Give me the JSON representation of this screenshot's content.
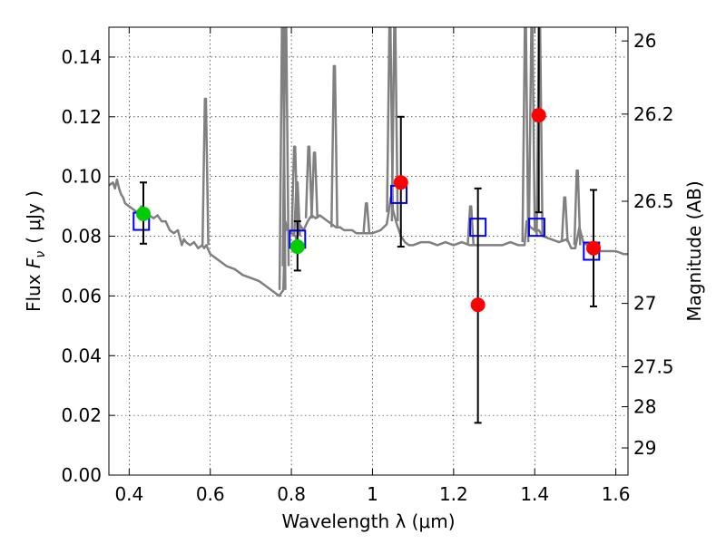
{
  "chart_data": {
    "type": "scatter",
    "title": "",
    "xlabel": "Wavelength  λ (μm)",
    "ylabel": "Flux  F_ν ( μJy )",
    "ylabel_parts": {
      "prefix": "Flux ",
      "symbol": "F",
      "subscript": "ν",
      "unit": "( μJy )"
    },
    "y2label": "Magnitude (AB)",
    "xlim": [
      0.35,
      1.63
    ],
    "ylim": [
      0.0,
      0.15
    ],
    "grid": true,
    "x_ticks": [
      "0.4",
      "0.6",
      "0.8",
      "1",
      "1.2",
      "1.4",
      "1.6"
    ],
    "x_tick_values": [
      0.4,
      0.6,
      0.8,
      1.0,
      1.2,
      1.4,
      1.6
    ],
    "y_ticks": [
      "0.00",
      "0.02",
      "0.04",
      "0.06",
      "0.08",
      "0.10",
      "0.12",
      "0.14"
    ],
    "y_tick_values": [
      0.0,
      0.02,
      0.04,
      0.06,
      0.08,
      0.1,
      0.12,
      0.14
    ],
    "y2_ticks": [
      {
        "label": "26",
        "flux": 0.1454
      },
      {
        "label": "26.2",
        "flux": 0.1209
      },
      {
        "label": "26.5",
        "flux": 0.0917
      },
      {
        "label": "27",
        "flux": 0.0575
      },
      {
        "label": "27.5",
        "flux": 0.0363
      },
      {
        "label": "28",
        "flux": 0.0229
      },
      {
        "label": "29",
        "flux": 0.0091
      }
    ],
    "colors": {
      "spectrum": "#808080",
      "model_box": "#0000ff",
      "green_points": "#00cc00",
      "red_points": "#ff0000",
      "errorbar": "#000000"
    },
    "series": [
      {
        "key": "spectrum",
        "kind": "line",
        "x": [
          0.35,
          0.36,
          0.365,
          0.37,
          0.375,
          0.38,
          0.385,
          0.39,
          0.4,
          0.41,
          0.42,
          0.43,
          0.44,
          0.45,
          0.46,
          0.47,
          0.48,
          0.49,
          0.5,
          0.51,
          0.52,
          0.53,
          0.535,
          0.54,
          0.55,
          0.56,
          0.57,
          0.58,
          0.585,
          0.59,
          0.6,
          0.62,
          0.64,
          0.66,
          0.68,
          0.7,
          0.72,
          0.74,
          0.76,
          0.77,
          0.775,
          0.78,
          0.785,
          0.79,
          0.8,
          0.81,
          0.812,
          0.815,
          0.82,
          0.83,
          0.84,
          0.85,
          0.86,
          0.87,
          0.88,
          0.89,
          0.9,
          0.91,
          0.92,
          0.93,
          0.94,
          0.95,
          0.96,
          0.97,
          0.98,
          0.99,
          1.0,
          1.02,
          1.035,
          1.04,
          1.045,
          1.05,
          1.06,
          1.07,
          1.08,
          1.09,
          1.1,
          1.12,
          1.14,
          1.16,
          1.18,
          1.2,
          1.22,
          1.24,
          1.26,
          1.28,
          1.3,
          1.32,
          1.34,
          1.36,
          1.375,
          1.38,
          1.385,
          1.39,
          1.4,
          1.41,
          1.42,
          1.44,
          1.46,
          1.48,
          1.49,
          1.5,
          1.51,
          1.52,
          1.54,
          1.56,
          1.58,
          1.6,
          1.62,
          1.63
        ],
        "y": [
          0.097,
          0.098,
          0.096,
          0.099,
          0.096,
          0.094,
          0.093,
          0.091,
          0.09,
          0.089,
          0.088,
          0.09,
          0.088,
          0.087,
          0.086,
          0.087,
          0.085,
          0.085,
          0.082,
          0.081,
          0.082,
          0.077,
          0.079,
          0.078,
          0.077,
          0.078,
          0.076,
          0.077,
          0.076,
          0.077,
          0.074,
          0.072,
          0.07,
          0.069,
          0.067,
          0.066,
          0.065,
          0.063,
          0.061,
          0.06,
          0.061,
          0.062,
          0.085,
          0.082,
          0.081,
          0.08,
          0.079,
          0.08,
          0.084,
          0.082,
          0.085,
          0.087,
          0.086,
          0.087,
          0.086,
          0.085,
          0.084,
          0.083,
          0.083,
          0.082,
          0.082,
          0.082,
          0.081,
          0.081,
          0.081,
          0.081,
          0.081,
          0.082,
          0.084,
          0.088,
          0.093,
          0.089,
          0.084,
          0.08,
          0.078,
          0.077,
          0.077,
          0.078,
          0.078,
          0.077,
          0.078,
          0.077,
          0.078,
          0.077,
          0.077,
          0.077,
          0.077,
          0.077,
          0.078,
          0.077,
          0.077,
          0.085,
          0.084,
          0.083,
          0.082,
          0.082,
          0.08,
          0.079,
          0.078,
          0.079,
          0.076,
          0.076,
          0.083,
          0.078,
          0.076,
          0.075,
          0.075,
          0.075,
          0.074,
          0.074
        ]
      },
      {
        "key": "emission_lines",
        "kind": "spikes",
        "points": [
          {
            "x": 0.588,
            "base": 0.077,
            "peak": 0.126
          },
          {
            "x": 0.778,
            "base": 0.062,
            "peak": 0.15
          },
          {
            "x": 0.786,
            "base": 0.07,
            "peak": 0.15
          },
          {
            "x": 0.808,
            "base": 0.081,
            "peak": 0.11
          },
          {
            "x": 0.814,
            "base": 0.08,
            "peak": 0.098
          },
          {
            "x": 0.843,
            "base": 0.086,
            "peak": 0.11
          },
          {
            "x": 0.857,
            "base": 0.086,
            "peak": 0.108
          },
          {
            "x": 0.906,
            "base": 0.083,
            "peak": 0.137
          },
          {
            "x": 0.985,
            "base": 0.081,
            "peak": 0.091
          },
          {
            "x": 1.043,
            "base": 0.088,
            "peak": 0.15
          },
          {
            "x": 1.055,
            "base": 0.085,
            "peak": 0.15
          },
          {
            "x": 1.242,
            "base": 0.077,
            "peak": 0.09
          },
          {
            "x": 1.377,
            "base": 0.078,
            "peak": 0.15
          },
          {
            "x": 1.393,
            "base": 0.082,
            "peak": 0.15
          },
          {
            "x": 1.412,
            "base": 0.08,
            "peak": 0.15
          },
          {
            "x": 1.474,
            "base": 0.078,
            "peak": 0.093
          },
          {
            "x": 1.505,
            "base": 0.077,
            "peak": 0.102
          }
        ]
      },
      {
        "key": "model_box",
        "kind": "square",
        "points": [
          {
            "x": 0.43,
            "y": 0.085
          },
          {
            "x": 0.815,
            "y": 0.079
          },
          {
            "x": 1.065,
            "y": 0.094
          },
          {
            "x": 1.26,
            "y": 0.083
          },
          {
            "x": 1.405,
            "y": 0.083
          },
          {
            "x": 1.54,
            "y": 0.075
          }
        ]
      },
      {
        "key": "green_points",
        "kind": "circle",
        "points": [
          {
            "x": 0.435,
            "y": 0.0875
          },
          {
            "x": 0.815,
            "y": 0.0765
          }
        ]
      },
      {
        "key": "red_points",
        "kind": "circle",
        "points": [
          {
            "x": 1.07,
            "y": 0.098
          },
          {
            "x": 1.26,
            "y": 0.057
          },
          {
            "x": 1.41,
            "y": 0.1205
          },
          {
            "x": 1.545,
            "y": 0.076
          }
        ]
      },
      {
        "key": "errorbars",
        "kind": "errorbar",
        "points": [
          {
            "x": 0.435,
            "low": 0.0775,
            "high": 0.098
          },
          {
            "x": 0.815,
            "low": 0.0685,
            "high": 0.085
          },
          {
            "x": 1.07,
            "low": 0.0765,
            "high": 0.12
          },
          {
            "x": 1.26,
            "low": 0.0175,
            "high": 0.096
          },
          {
            "x": 1.41,
            "low": 0.088,
            "high": 0.15
          },
          {
            "x": 1.545,
            "low": 0.0565,
            "high": 0.0955
          }
        ]
      }
    ]
  }
}
